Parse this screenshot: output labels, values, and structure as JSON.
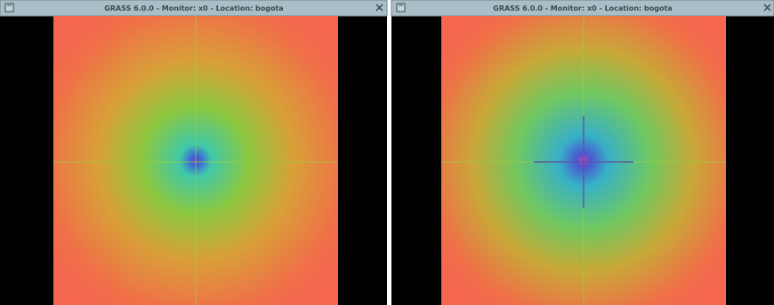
{
  "windows": [
    {
      "title": "GRASS 6.0.0 - Monitor: x0 - Location: bogota"
    },
    {
      "title": "GRASS 6.0.0 - Monitor: x0 - Location: bogota"
    }
  ]
}
